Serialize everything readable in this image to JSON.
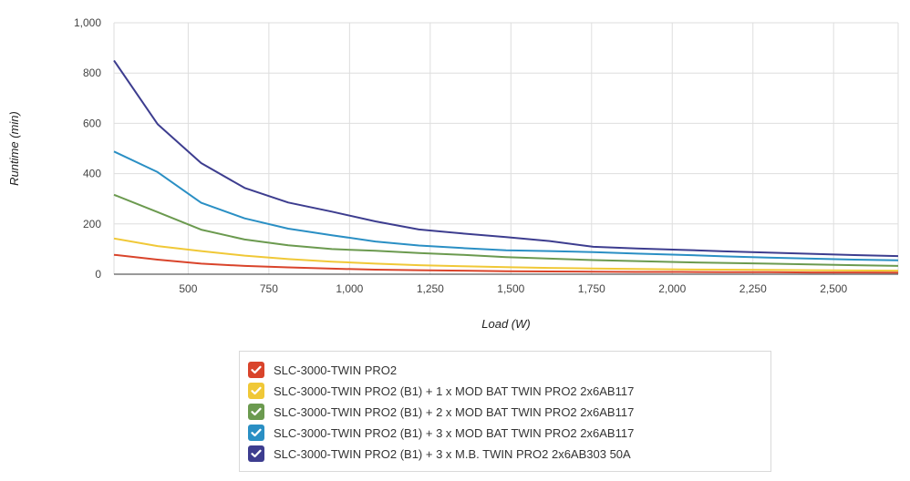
{
  "chart_data": {
    "type": "line",
    "title": "",
    "xlabel": "Load (W)",
    "ylabel": "Runtime (min)",
    "xlim": [
      270,
      2700
    ],
    "ylim": [
      0,
      1000
    ],
    "x_ticks": [
      500,
      750,
      1000,
      1250,
      1500,
      1750,
      2000,
      2250,
      2500
    ],
    "x_tick_labels": [
      "500",
      "750",
      "1,000",
      "1,250",
      "1,500",
      "1,750",
      "2,000",
      "2,250",
      "2,500"
    ],
    "y_ticks": [
      0,
      200,
      400,
      600,
      800,
      1000
    ],
    "y_tick_labels": [
      "0",
      "200",
      "400",
      "600",
      "800",
      "1,000"
    ],
    "grid": true,
    "legend_position": "bottom",
    "series": [
      {
        "name": "SLC-3000-TWIN PRO2",
        "color": "#d9442b",
        "x": [
          270,
          405,
          540,
          675,
          810,
          945,
          1080,
          1215,
          1350,
          1485,
          1620,
          1755,
          1890,
          2025,
          2160,
          2295,
          2430,
          2565,
          2700
        ],
        "y": [
          77,
          58,
          42,
          33,
          27,
          22,
          18,
          16,
          14,
          12,
          11,
          10,
          9,
          9,
          8,
          8,
          7,
          7,
          6
        ]
      },
      {
        "name": "SLC-3000-TWIN PRO2 (B1) + 1 x MOD BAT TWIN PRO2 2x6AB117",
        "color": "#f0c837",
        "x": [
          270,
          405,
          540,
          675,
          810,
          945,
          1080,
          1215,
          1350,
          1485,
          1620,
          1755,
          1890,
          2025,
          2160,
          2295,
          2430,
          2565,
          2700
        ],
        "y": [
          142,
          112,
          92,
          74,
          60,
          50,
          42,
          36,
          32,
          28,
          25,
          23,
          21,
          19,
          18,
          17,
          16,
          15,
          14
        ]
      },
      {
        "name": "SLC-3000-TWIN PRO2 (B1) + 2 x MOD BAT TWIN PRO2 2x6AB117",
        "color": "#6b9a4f",
        "x": [
          270,
          405,
          540,
          675,
          810,
          945,
          1080,
          1215,
          1350,
          1485,
          1620,
          1755,
          1890,
          2025,
          2160,
          2295,
          2430,
          2565,
          2700
        ],
        "y": [
          316,
          247,
          177,
          138,
          115,
          100,
          93,
          84,
          77,
          68,
          62,
          56,
          52,
          48,
          45,
          42,
          39,
          36,
          33
        ]
      },
      {
        "name": "SLC-3000-TWIN PRO2 (B1) + 3 x MOD BAT TWIN PRO2 2x6AB117",
        "color": "#2a8fc4",
        "x": [
          270,
          405,
          540,
          675,
          810,
          945,
          1080,
          1215,
          1350,
          1485,
          1620,
          1755,
          1890,
          2025,
          2160,
          2295,
          2430,
          2565,
          2700
        ],
        "y": [
          488,
          406,
          284,
          222,
          181,
          155,
          130,
          114,
          104,
          95,
          92,
          88,
          82,
          77,
          71,
          66,
          62,
          58,
          55
        ]
      },
      {
        "name": "SLC-3000-TWIN PRO2 (B1) + 3 x M.B. TWIN PRO2 2x6AB303 50A",
        "color": "#3d3d8f",
        "x": [
          270,
          405,
          540,
          675,
          810,
          945,
          1080,
          1215,
          1350,
          1485,
          1620,
          1755,
          1890,
          2025,
          2160,
          2295,
          2430,
          2565,
          2700
        ],
        "y": [
          850,
          597,
          442,
          343,
          285,
          249,
          210,
          178,
          162,
          148,
          132,
          109,
          102,
          97,
          91,
          86,
          81,
          76,
          72
        ]
      }
    ]
  }
}
